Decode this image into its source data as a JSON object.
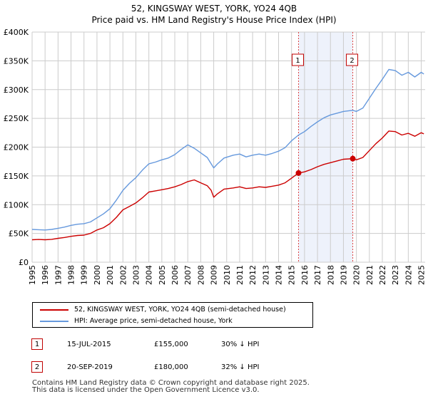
{
  "title": {
    "line1": "52, KINGSWAY WEST, YORK, YO24 4QB",
    "line2": "Price paid vs. HM Land Registry's House Price Index (HPI)"
  },
  "colors": {
    "property_line": "#cc0000",
    "hpi_line": "#6699dd",
    "shade": "#eef2fb",
    "grid": "#cccccc",
    "marker_line": "#dd4444"
  },
  "chart_data": {
    "type": "line",
    "title": "Price paid vs. HM Land Registry's House Price Index (HPI)",
    "xlabel": "",
    "ylabel": "",
    "xlim": [
      1995,
      2025.3
    ],
    "ylim": [
      0,
      400000
    ],
    "yticks": [
      {
        "value": 0,
        "label": "£0"
      },
      {
        "value": 50000,
        "label": "£50K"
      },
      {
        "value": 100000,
        "label": "£100K"
      },
      {
        "value": 150000,
        "label": "£150K"
      },
      {
        "value": 200000,
        "label": "£200K"
      },
      {
        "value": 250000,
        "label": "£250K"
      },
      {
        "value": 300000,
        "label": "£300K"
      },
      {
        "value": 350000,
        "label": "£350K"
      },
      {
        "value": 400000,
        "label": "£400K"
      }
    ],
    "xticks": [
      "1995",
      "1996",
      "1997",
      "1998",
      "1999",
      "2000",
      "2001",
      "2002",
      "2003",
      "2004",
      "2005",
      "2006",
      "2007",
      "2008",
      "2009",
      "2010",
      "2011",
      "2012",
      "2013",
      "2014",
      "2015",
      "2016",
      "2017",
      "2018",
      "2019",
      "2020",
      "2021",
      "2022",
      "2023",
      "2024",
      "2025"
    ],
    "shaded_region": [
      2015.54,
      2019.72
    ],
    "series": [
      {
        "name": "52, KINGSWAY WEST, YORK, YO24 4QB (semi-detached house)",
        "color": "#cc0000",
        "points": [
          [
            1995.0,
            39000
          ],
          [
            1995.5,
            39500
          ],
          [
            1996.0,
            39000
          ],
          [
            1996.5,
            39800
          ],
          [
            1997.0,
            41500
          ],
          [
            1997.5,
            43000
          ],
          [
            1998.0,
            45000
          ],
          [
            1998.5,
            46500
          ],
          [
            1999.0,
            47000
          ],
          [
            1999.5,
            50000
          ],
          [
            2000.0,
            56000
          ],
          [
            2000.5,
            60000
          ],
          [
            2001.0,
            67000
          ],
          [
            2001.5,
            78000
          ],
          [
            2002.0,
            91000
          ],
          [
            2002.5,
            97000
          ],
          [
            2003.0,
            103000
          ],
          [
            2003.5,
            112000
          ],
          [
            2004.0,
            122000
          ],
          [
            2004.5,
            124000
          ],
          [
            2005.0,
            126000
          ],
          [
            2005.5,
            128000
          ],
          [
            2006.0,
            131000
          ],
          [
            2006.5,
            135000
          ],
          [
            2007.0,
            140000
          ],
          [
            2007.5,
            143000
          ],
          [
            2008.0,
            138000
          ],
          [
            2008.5,
            133000
          ],
          [
            2008.8,
            125000
          ],
          [
            2009.0,
            113000
          ],
          [
            2009.3,
            119000
          ],
          [
            2009.8,
            127000
          ],
          [
            2010.5,
            129000
          ],
          [
            2011.0,
            131000
          ],
          [
            2011.5,
            128000
          ],
          [
            2012.0,
            129000
          ],
          [
            2012.5,
            131000
          ],
          [
            2013.0,
            130000
          ],
          [
            2013.5,
            132000
          ],
          [
            2014.0,
            134000
          ],
          [
            2014.5,
            138000
          ],
          [
            2015.0,
            146000
          ],
          [
            2015.54,
            155000
          ],
          [
            2016.0,
            157000
          ],
          [
            2016.5,
            161000
          ],
          [
            2017.0,
            166000
          ],
          [
            2017.5,
            170000
          ],
          [
            2018.0,
            173000
          ],
          [
            2018.5,
            176000
          ],
          [
            2019.0,
            179000
          ],
          [
            2019.72,
            180000
          ],
          [
            2020.0,
            178000
          ],
          [
            2020.5,
            182000
          ],
          [
            2021.0,
            194000
          ],
          [
            2021.5,
            206000
          ],
          [
            2022.0,
            216000
          ],
          [
            2022.5,
            228000
          ],
          [
            2023.0,
            227000
          ],
          [
            2023.5,
            221000
          ],
          [
            2024.0,
            224000
          ],
          [
            2024.5,
            219000
          ],
          [
            2025.0,
            225000
          ],
          [
            2025.2,
            223000
          ]
        ]
      },
      {
        "name": "HPI: Average price, semi-detached house, York",
        "color": "#6699dd",
        "points": [
          [
            1995.0,
            57000
          ],
          [
            1995.5,
            56500
          ],
          [
            1996.0,
            56000
          ],
          [
            1996.5,
            57000
          ],
          [
            1997.0,
            59000
          ],
          [
            1997.5,
            61000
          ],
          [
            1998.0,
            64000
          ],
          [
            1998.5,
            66000
          ],
          [
            1999.0,
            67000
          ],
          [
            1999.5,
            70000
          ],
          [
            2000.0,
            77000
          ],
          [
            2000.5,
            84000
          ],
          [
            2001.0,
            93000
          ],
          [
            2001.5,
            108000
          ],
          [
            2002.0,
            125000
          ],
          [
            2002.5,
            137000
          ],
          [
            2003.0,
            147000
          ],
          [
            2003.5,
            160000
          ],
          [
            2004.0,
            171000
          ],
          [
            2004.5,
            174000
          ],
          [
            2005.0,
            178000
          ],
          [
            2005.5,
            181000
          ],
          [
            2006.0,
            187000
          ],
          [
            2006.5,
            196000
          ],
          [
            2007.0,
            204000
          ],
          [
            2007.5,
            198000
          ],
          [
            2008.0,
            190000
          ],
          [
            2008.5,
            182000
          ],
          [
            2008.8,
            171000
          ],
          [
            2009.0,
            164000
          ],
          [
            2009.3,
            171000
          ],
          [
            2009.8,
            181000
          ],
          [
            2010.5,
            186000
          ],
          [
            2011.0,
            188000
          ],
          [
            2011.5,
            183000
          ],
          [
            2012.0,
            186000
          ],
          [
            2012.5,
            188000
          ],
          [
            2013.0,
            186000
          ],
          [
            2013.5,
            189000
          ],
          [
            2014.0,
            193000
          ],
          [
            2014.5,
            199000
          ],
          [
            2015.0,
            211000
          ],
          [
            2015.54,
            221000
          ],
          [
            2016.0,
            227000
          ],
          [
            2016.5,
            236000
          ],
          [
            2017.0,
            244000
          ],
          [
            2017.5,
            251000
          ],
          [
            2018.0,
            256000
          ],
          [
            2018.5,
            259000
          ],
          [
            2019.0,
            262000
          ],
          [
            2019.72,
            264000
          ],
          [
            2020.0,
            262000
          ],
          [
            2020.5,
            268000
          ],
          [
            2021.0,
            285000
          ],
          [
            2021.5,
            302000
          ],
          [
            2022.0,
            318000
          ],
          [
            2022.5,
            335000
          ],
          [
            2023.0,
            333000
          ],
          [
            2023.5,
            325000
          ],
          [
            2024.0,
            330000
          ],
          [
            2024.5,
            322000
          ],
          [
            2025.0,
            330000
          ],
          [
            2025.2,
            327000
          ]
        ]
      }
    ],
    "annotations": [
      {
        "label": "1",
        "x": 2015.54,
        "y": 155000
      },
      {
        "label": "2",
        "x": 2019.72,
        "y": 180000
      }
    ]
  },
  "legend": {
    "property": "52, KINGSWAY WEST, YORK, YO24 4QB (semi-detached house)",
    "hpi": "HPI: Average price, semi-detached house, York"
  },
  "transactions": [
    {
      "num": "1",
      "date": "15-JUL-2015",
      "price": "£155,000",
      "hpi": "30% ↓ HPI"
    },
    {
      "num": "2",
      "date": "20-SEP-2019",
      "price": "£180,000",
      "hpi": "32% ↓ HPI"
    }
  ],
  "footer": {
    "line1": "Contains HM Land Registry data © Crown copyright and database right 2025.",
    "line2": "This data is licensed under the Open Government Licence v3.0."
  }
}
